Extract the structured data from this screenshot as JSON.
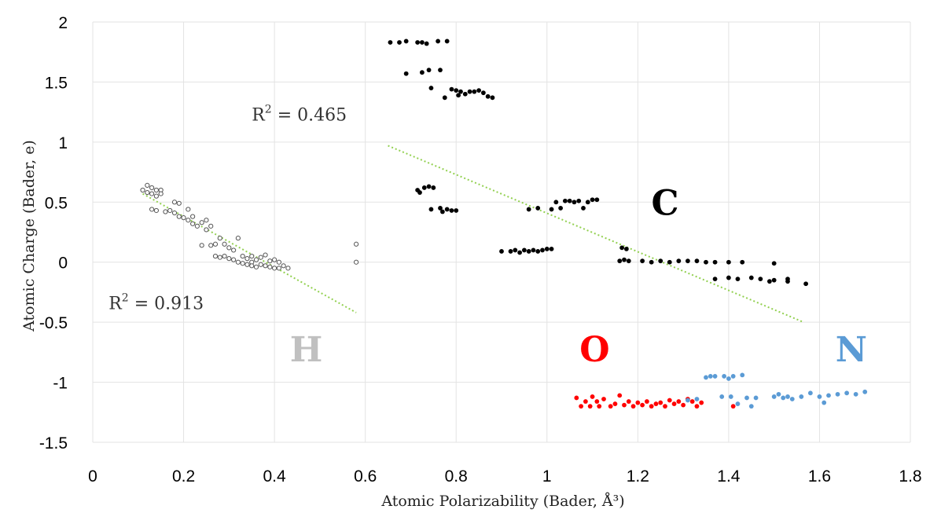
{
  "chart_data": {
    "type": "scatter",
    "xlabel": "Atomic Polarizability (Bader, Å³)",
    "ylabel": "Atomic Charge (Bader, e)",
    "xlim": [
      0,
      1.8
    ],
    "ylim": [
      -1.5,
      2
    ],
    "x_ticks": [
      "0",
      "0.2",
      "0.4",
      "0.6",
      "0.8",
      "1",
      "1.2",
      "1.4",
      "1.6",
      "1.8"
    ],
    "y_ticks": [
      "2",
      "1.5",
      "1",
      "0.5",
      "0",
      "-0.5",
      "-1",
      "-1.5"
    ],
    "grid": true,
    "colors": {
      "H": "#8c8c8c",
      "C": "#000000",
      "O": "#ff0000",
      "N": "#5b9bd5",
      "trend": "#92d050",
      "grid": "#e3e3e3"
    },
    "labels": [
      {
        "text": "H",
        "x": 0.47,
        "y": -0.72,
        "color": "#c0c0c0"
      },
      {
        "text": "C",
        "x": 1.26,
        "y": 0.5,
        "color": "#000000"
      },
      {
        "text": "O",
        "x": 1.105,
        "y": -0.72,
        "color": "#ff0000"
      },
      {
        "text": "N",
        "x": 1.67,
        "y": -0.72,
        "color": "#5b9bd5"
      }
    ],
    "annotations": [
      {
        "base": "R",
        "sup": "2",
        "rest": " = 0.465",
        "x": 0.35,
        "y": 1.18
      },
      {
        "base": "R",
        "sup": "2",
        "rest": " = 0.913",
        "x": 0.035,
        "y": -0.39
      }
    ],
    "trendlines": [
      {
        "name": "H fit",
        "x": [
          0.11,
          0.58
        ],
        "y": [
          0.57,
          -0.42
        ]
      },
      {
        "name": "C fit",
        "x": [
          0.65,
          1.565
        ],
        "y": [
          0.97,
          -0.5
        ]
      }
    ],
    "series": [
      {
        "name": "H",
        "marker": "open-circle",
        "points": [
          [
            0.11,
            0.6
          ],
          [
            0.12,
            0.64
          ],
          [
            0.12,
            0.58
          ],
          [
            0.13,
            0.62
          ],
          [
            0.13,
            0.57
          ],
          [
            0.14,
            0.6
          ],
          [
            0.14,
            0.55
          ],
          [
            0.15,
            0.6
          ],
          [
            0.15,
            0.57
          ],
          [
            0.13,
            0.44
          ],
          [
            0.14,
            0.43
          ],
          [
            0.16,
            0.42
          ],
          [
            0.17,
            0.43
          ],
          [
            0.18,
            0.41
          ],
          [
            0.18,
            0.5
          ],
          [
            0.19,
            0.49
          ],
          [
            0.19,
            0.38
          ],
          [
            0.2,
            0.37
          ],
          [
            0.21,
            0.44
          ],
          [
            0.21,
            0.35
          ],
          [
            0.22,
            0.32
          ],
          [
            0.22,
            0.38
          ],
          [
            0.23,
            0.3
          ],
          [
            0.24,
            0.33
          ],
          [
            0.24,
            0.14
          ],
          [
            0.25,
            0.27
          ],
          [
            0.25,
            0.35
          ],
          [
            0.26,
            0.3
          ],
          [
            0.26,
            0.14
          ],
          [
            0.27,
            0.15
          ],
          [
            0.27,
            0.05
          ],
          [
            0.28,
            0.04
          ],
          [
            0.28,
            0.2
          ],
          [
            0.29,
            0.15
          ],
          [
            0.29,
            0.05
          ],
          [
            0.3,
            0.12
          ],
          [
            0.3,
            0.03
          ],
          [
            0.31,
            0.1
          ],
          [
            0.31,
            0.02
          ],
          [
            0.32,
            0.2
          ],
          [
            0.32,
            0.0
          ],
          [
            0.33,
            0.05
          ],
          [
            0.33,
            -0.01
          ],
          [
            0.34,
            0.03
          ],
          [
            0.34,
            -0.02
          ],
          [
            0.35,
            0.05
          ],
          [
            0.35,
            0.0
          ],
          [
            0.35,
            -0.03
          ],
          [
            0.36,
            0.02
          ],
          [
            0.36,
            -0.04
          ],
          [
            0.37,
            0.04
          ],
          [
            0.37,
            -0.02
          ],
          [
            0.38,
            0.06
          ],
          [
            0.38,
            -0.03
          ],
          [
            0.39,
            0.01
          ],
          [
            0.39,
            -0.04
          ],
          [
            0.4,
            0.02
          ],
          [
            0.4,
            -0.05
          ],
          [
            0.41,
            0.0
          ],
          [
            0.41,
            -0.05
          ],
          [
            0.42,
            -0.03
          ],
          [
            0.43,
            -0.05
          ],
          [
            0.58,
            0.15
          ],
          [
            0.58,
            0.0
          ]
        ]
      },
      {
        "name": "C",
        "marker": "filled-circle",
        "points": [
          [
            0.655,
            1.83
          ],
          [
            0.675,
            1.83
          ],
          [
            0.69,
            1.84
          ],
          [
            0.715,
            1.83
          ],
          [
            0.725,
            1.83
          ],
          [
            0.735,
            1.82
          ],
          [
            0.76,
            1.84
          ],
          [
            0.78,
            1.84
          ],
          [
            0.69,
            1.57
          ],
          [
            0.725,
            1.58
          ],
          [
            0.74,
            1.6
          ],
          [
            0.765,
            1.6
          ],
          [
            0.745,
            1.45
          ],
          [
            0.775,
            1.37
          ],
          [
            0.79,
            1.44
          ],
          [
            0.8,
            1.43
          ],
          [
            0.805,
            1.39
          ],
          [
            0.81,
            1.42
          ],
          [
            0.82,
            1.4
          ],
          [
            0.83,
            1.42
          ],
          [
            0.84,
            1.42
          ],
          [
            0.85,
            1.43
          ],
          [
            0.86,
            1.41
          ],
          [
            0.87,
            1.38
          ],
          [
            0.88,
            1.37
          ],
          [
            0.715,
            0.6
          ],
          [
            0.72,
            0.58
          ],
          [
            0.73,
            0.62
          ],
          [
            0.74,
            0.63
          ],
          [
            0.75,
            0.62
          ],
          [
            0.745,
            0.44
          ],
          [
            0.765,
            0.45
          ],
          [
            0.77,
            0.42
          ],
          [
            0.78,
            0.44
          ],
          [
            0.79,
            0.43
          ],
          [
            0.8,
            0.43
          ],
          [
            0.9,
            0.09
          ],
          [
            0.92,
            0.09
          ],
          [
            0.93,
            0.1
          ],
          [
            0.94,
            0.08
          ],
          [
            0.95,
            0.1
          ],
          [
            0.96,
            0.09
          ],
          [
            0.97,
            0.1
          ],
          [
            0.98,
            0.09
          ],
          [
            0.99,
            0.1
          ],
          [
            1.0,
            0.11
          ],
          [
            1.01,
            0.11
          ],
          [
            0.96,
            0.44
          ],
          [
            0.98,
            0.45
          ],
          [
            1.01,
            0.44
          ],
          [
            1.02,
            0.5
          ],
          [
            1.03,
            0.45
          ],
          [
            1.04,
            0.51
          ],
          [
            1.05,
            0.51
          ],
          [
            1.06,
            0.5
          ],
          [
            1.07,
            0.51
          ],
          [
            1.08,
            0.45
          ],
          [
            1.09,
            0.5
          ],
          [
            1.1,
            0.52
          ],
          [
            1.11,
            0.52
          ],
          [
            1.16,
            0.01
          ],
          [
            1.17,
            0.02
          ],
          [
            1.18,
            0.01
          ],
          [
            1.165,
            0.12
          ],
          [
            1.175,
            0.11
          ],
          [
            1.21,
            0.01
          ],
          [
            1.23,
            0.0
          ],
          [
            1.25,
            0.01
          ],
          [
            1.27,
            0.0
          ],
          [
            1.29,
            0.01
          ],
          [
            1.31,
            0.01
          ],
          [
            1.33,
            0.01
          ],
          [
            1.35,
            0.0
          ],
          [
            1.37,
            0.0
          ],
          [
            1.4,
            0.0
          ],
          [
            1.43,
            0.0
          ],
          [
            1.5,
            -0.01
          ],
          [
            1.37,
            -0.14
          ],
          [
            1.4,
            -0.13
          ],
          [
            1.42,
            -0.14
          ],
          [
            1.45,
            -0.13
          ],
          [
            1.47,
            -0.14
          ],
          [
            1.49,
            -0.16
          ],
          [
            1.5,
            -0.15
          ],
          [
            1.53,
            -0.14
          ],
          [
            1.53,
            -0.16
          ],
          [
            1.57,
            -0.18
          ]
        ]
      },
      {
        "name": "O",
        "marker": "filled-circle",
        "points": [
          [
            1.065,
            -1.13
          ],
          [
            1.075,
            -1.2
          ],
          [
            1.085,
            -1.16
          ],
          [
            1.095,
            -1.2
          ],
          [
            1.1,
            -1.12
          ],
          [
            1.11,
            -1.16
          ],
          [
            1.115,
            -1.2
          ],
          [
            1.125,
            -1.14
          ],
          [
            1.14,
            -1.2
          ],
          [
            1.15,
            -1.18
          ],
          [
            1.16,
            -1.11
          ],
          [
            1.17,
            -1.19
          ],
          [
            1.18,
            -1.16
          ],
          [
            1.19,
            -1.2
          ],
          [
            1.2,
            -1.17
          ],
          [
            1.21,
            -1.19
          ],
          [
            1.22,
            -1.16
          ],
          [
            1.23,
            -1.2
          ],
          [
            1.24,
            -1.18
          ],
          [
            1.25,
            -1.17
          ],
          [
            1.26,
            -1.2
          ],
          [
            1.27,
            -1.15
          ],
          [
            1.28,
            -1.18
          ],
          [
            1.29,
            -1.16
          ],
          [
            1.3,
            -1.19
          ],
          [
            1.31,
            -1.14
          ],
          [
            1.32,
            -1.16
          ],
          [
            1.33,
            -1.2
          ],
          [
            1.34,
            -1.17
          ],
          [
            1.41,
            -1.2
          ]
        ]
      },
      {
        "name": "N",
        "marker": "filled-circle",
        "points": [
          [
            1.31,
            -1.15
          ],
          [
            1.33,
            -1.14
          ],
          [
            1.35,
            -0.96
          ],
          [
            1.36,
            -0.95
          ],
          [
            1.37,
            -0.95
          ],
          [
            1.385,
            -1.12
          ],
          [
            1.39,
            -0.95
          ],
          [
            1.4,
            -0.97
          ],
          [
            1.405,
            -1.12
          ],
          [
            1.41,
            -0.95
          ],
          [
            1.42,
            -1.18
          ],
          [
            1.43,
            -0.94
          ],
          [
            1.44,
            -1.13
          ],
          [
            1.45,
            -1.2
          ],
          [
            1.46,
            -1.13
          ],
          [
            1.5,
            -1.12
          ],
          [
            1.51,
            -1.1
          ],
          [
            1.52,
            -1.13
          ],
          [
            1.53,
            -1.12
          ],
          [
            1.54,
            -1.14
          ],
          [
            1.56,
            -1.12
          ],
          [
            1.58,
            -1.09
          ],
          [
            1.6,
            -1.12
          ],
          [
            1.61,
            -1.17
          ],
          [
            1.62,
            -1.11
          ],
          [
            1.64,
            -1.1
          ],
          [
            1.66,
            -1.09
          ],
          [
            1.68,
            -1.1
          ],
          [
            1.7,
            -1.08
          ]
        ]
      }
    ]
  }
}
